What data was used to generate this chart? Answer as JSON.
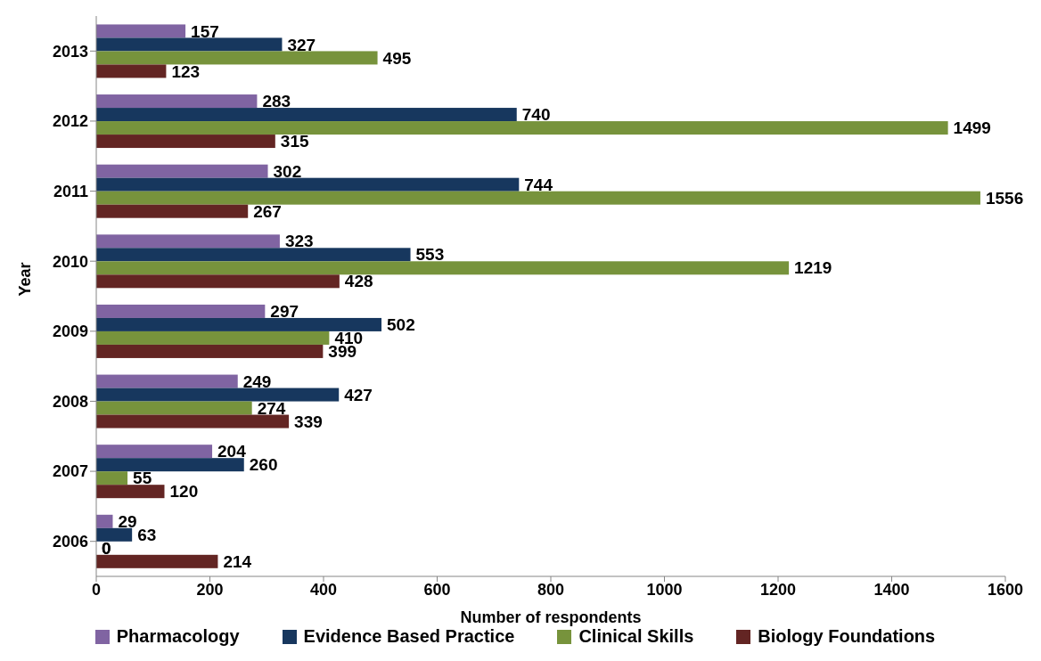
{
  "chart_data": {
    "type": "bar",
    "orientation": "horizontal",
    "xlabel": "Number of respondents",
    "ylabel": "Year",
    "categories": [
      "2013",
      "2012",
      "2011",
      "2010",
      "2009",
      "2008",
      "2007",
      "2006"
    ],
    "series": [
      {
        "name": "Pharmacology",
        "color": "#8064a2",
        "values": [
          157,
          283,
          302,
          323,
          297,
          249,
          204,
          29
        ]
      },
      {
        "name": "Evidence Based Practice",
        "color": "#17375e",
        "values": [
          327,
          740,
          744,
          553,
          502,
          427,
          260,
          63
        ]
      },
      {
        "name": "Clinical Skills",
        "color": "#77933c",
        "values": [
          495,
          1499,
          1556,
          1219,
          410,
          274,
          55,
          0
        ]
      },
      {
        "name": "Biology Foundations",
        "color": "#632523",
        "values": [
          123,
          315,
          267,
          428,
          399,
          339,
          120,
          214
        ]
      }
    ],
    "xlim": [
      0,
      1600
    ],
    "xticks": [
      0,
      200,
      400,
      600,
      800,
      1000,
      1200,
      1400,
      1600
    ],
    "data_labels": true,
    "legend": "bottom",
    "grid": false
  }
}
